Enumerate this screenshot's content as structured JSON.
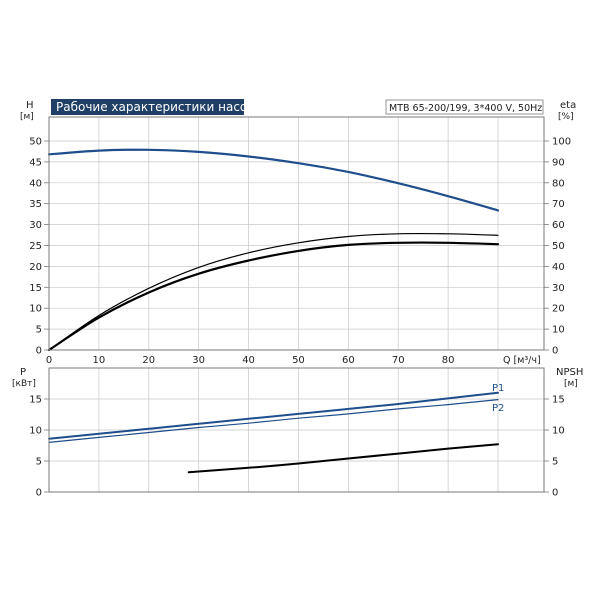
{
  "title": "Рабочие характеристики насоса",
  "model": "MTB 65-200/199, 3*400 V, 50Hz",
  "colors": {
    "blue": "#1f4e8c",
    "black": "#000000",
    "title_bg": "#1f3f66",
    "title_fg": "#ffffff"
  },
  "chart_data": [
    {
      "type": "line",
      "panel": "top",
      "xlabel": "Q [м³/ч]",
      "ylabel_left": [
        "H",
        "[м]"
      ],
      "ylabel_right": [
        "eta",
        "[%]"
      ],
      "xlim": [
        0,
        90
      ],
      "ylim": [
        0,
        50
      ],
      "ylim_right": [
        0,
        100
      ],
      "x_ticks": [
        0,
        10,
        20,
        30,
        40,
        50,
        60,
        70,
        80
      ],
      "y_ticks": [
        0,
        5,
        10,
        15,
        20,
        25,
        30,
        35,
        40,
        45,
        50
      ],
      "y_ticks_right": [
        0,
        10,
        20,
        30,
        40,
        50,
        60,
        70,
        80,
        90,
        100
      ],
      "grid": true,
      "series": [
        {
          "axis": "left",
          "color": "#1f4e8c",
          "width": 2.2,
          "x": [
            0,
            10,
            20,
            30,
            40,
            50,
            60,
            70,
            80,
            90
          ],
          "y": [
            46.8,
            47.7,
            47.9,
            47.4,
            46.3,
            44.7,
            42.6,
            39.9,
            36.8,
            33.4
          ]
        },
        {
          "axis": "right",
          "color": "#000000",
          "width": 1.2,
          "x": [
            0,
            10,
            20,
            30,
            40,
            50,
            60,
            70,
            80,
            90
          ],
          "y": [
            0,
            16.5,
            29.5,
            39.5,
            46.5,
            51.3,
            54.3,
            55.6,
            55.6,
            54.9
          ]
        },
        {
          "axis": "right",
          "color": "#000000",
          "width": 2.2,
          "x": [
            0,
            10,
            20,
            30,
            40,
            50,
            60,
            70,
            80,
            90
          ],
          "y": [
            0,
            15.5,
            27.5,
            36.5,
            42.8,
            47.4,
            50.3,
            51.3,
            51.3,
            50.6
          ]
        }
      ]
    },
    {
      "type": "line",
      "panel": "bottom",
      "ylabel_left": [
        "P",
        "[кВт]"
      ],
      "ylabel_right": [
        "NPSH",
        "[м]"
      ],
      "xlim": [
        0,
        90
      ],
      "ylim": [
        0,
        20
      ],
      "ylim_right": [
        0,
        20
      ],
      "y_ticks": [
        0,
        5,
        10,
        15
      ],
      "y_ticks_right": [
        0,
        5,
        10,
        15
      ],
      "grid": true,
      "series": [
        {
          "name": "P1",
          "axis": "left",
          "color": "#1f4e8c",
          "width": 2,
          "x": [
            0,
            10,
            20,
            30,
            40,
            50,
            60,
            70,
            80,
            90
          ],
          "y": [
            8.6,
            9.4,
            10.2,
            11.0,
            11.8,
            12.6,
            13.4,
            14.2,
            15.1,
            16.0
          ]
        },
        {
          "name": "P2",
          "axis": "left",
          "color": "#1f4e8c",
          "width": 1.2,
          "x": [
            0,
            10,
            20,
            30,
            40,
            50,
            60,
            70,
            80,
            90
          ],
          "y": [
            8.0,
            8.8,
            9.6,
            10.4,
            11.1,
            11.9,
            12.6,
            13.4,
            14.1,
            14.9
          ]
        },
        {
          "axis": "right",
          "color": "#000000",
          "width": 2,
          "x": [
            28,
            40,
            50,
            60,
            70,
            80,
            90
          ],
          "y": [
            3.2,
            3.9,
            4.6,
            5.4,
            6.2,
            7.0,
            7.7
          ]
        }
      ]
    }
  ]
}
